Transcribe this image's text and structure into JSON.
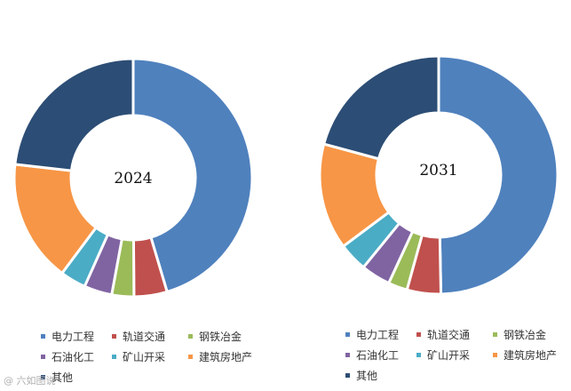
{
  "watermark": "@ 六如图说",
  "chart_data": [
    {
      "type": "pie",
      "title": "2024",
      "categories": [
        "电力工程",
        "轨道交通",
        "钢铁冶金",
        "石油化工",
        "矿山开采",
        "建筑房地产",
        "其他"
      ],
      "values": [
        45.4,
        4.5,
        3.0,
        3.8,
        3.5,
        16.6,
        23.2
      ],
      "colors": [
        "#4F81BD",
        "#C0504D",
        "#9BBB59",
        "#8064A2",
        "#4BACC6",
        "#F79646",
        "#2C4D75"
      ],
      "legend": "bottom"
    },
    {
      "type": "pie",
      "title": "2031",
      "categories": [
        "电力工程",
        "轨道交通",
        "钢铁冶金",
        "石油化工",
        "矿山开采",
        "建筑房地产",
        "其他"
      ],
      "values": [
        49.7,
        4.6,
        2.6,
        4.0,
        3.9,
        14.4,
        20.8
      ],
      "colors": [
        "#4F81BD",
        "#C0504D",
        "#9BBB59",
        "#8064A2",
        "#4BACC6",
        "#F79646",
        "#2C4D75"
      ],
      "legend": "bottom"
    }
  ]
}
